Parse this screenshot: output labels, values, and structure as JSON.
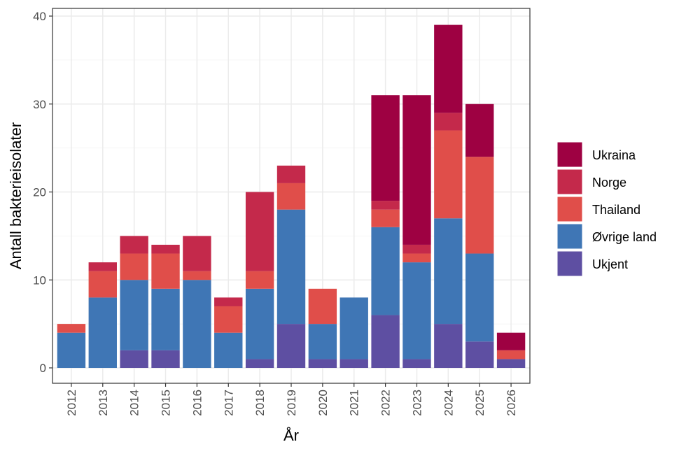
{
  "chart_data": {
    "type": "bar",
    "stacked": true,
    "xlabel": "År",
    "ylabel": "Antall bakterieisolater",
    "ylim": [
      0,
      41.5
    ],
    "yticks": [
      0,
      10,
      20,
      30,
      40
    ],
    "grid": true,
    "legend_position": "right",
    "categories": [
      "2012",
      "2013",
      "2014",
      "2015",
      "2016",
      "2017",
      "2018",
      "2019",
      "2020",
      "2021",
      "2022",
      "2023",
      "2024",
      "2025",
      "2026"
    ],
    "series": [
      {
        "name": "Ukjent",
        "color": "#5E4FA2",
        "values": [
          0,
          0,
          2,
          2,
          0,
          0,
          1,
          5,
          1,
          1,
          6,
          1,
          5,
          3,
          1
        ]
      },
      {
        "name": "Øvrige land",
        "color": "#3F76B5",
        "values": [
          4,
          8,
          8,
          7,
          10,
          4,
          8,
          13,
          4,
          7,
          10,
          11,
          12,
          10,
          0
        ]
      },
      {
        "name": "Thailand",
        "color": "#E04E4A",
        "values": [
          1,
          3,
          3,
          4,
          1,
          3,
          2,
          3,
          4,
          0,
          2,
          1,
          10,
          11,
          1
        ]
      },
      {
        "name": "Norge",
        "color": "#C4294B",
        "values": [
          0,
          1,
          2,
          1,
          4,
          1,
          9,
          2,
          0,
          0,
          1,
          1,
          2,
          0,
          0
        ]
      },
      {
        "name": "Ukraina",
        "color": "#9E0142",
        "values": [
          0,
          0,
          0,
          0,
          0,
          0,
          0,
          0,
          0,
          0,
          12,
          17,
          10,
          6,
          2
        ]
      }
    ],
    "legend_order": [
      "Ukraina",
      "Norge",
      "Thailand",
      "Øvrige land",
      "Ukjent"
    ]
  }
}
